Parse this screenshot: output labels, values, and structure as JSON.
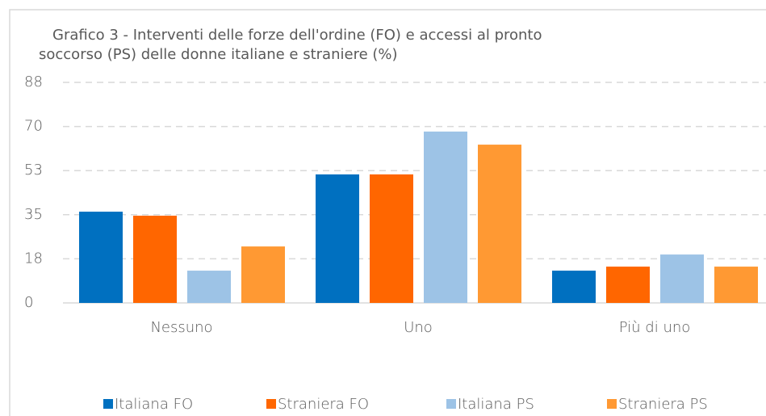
{
  "chart_data": {
    "type": "bar",
    "title": "Grafico 3 - Interventi delle forze dell'ordine (FO) e accessi al pronto soccorso (PS) delle donne italiane e straniere (%)",
    "categories": [
      "Nessuno",
      "Uno",
      "Più di uno"
    ],
    "series": [
      {
        "name": "Italiana FO",
        "color": "#0070c0",
        "values": [
          36.2,
          51,
          12.8
        ]
      },
      {
        "name": "Straniera FO",
        "color": "#ff6600",
        "values": [
          34.6,
          51,
          14.4
        ]
      },
      {
        "name": "Italiana PS",
        "color": "#9dc3e6",
        "values": [
          12.8,
          68,
          19.2
        ]
      },
      {
        "name": "Straniera PS",
        "color": "#ff9933",
        "values": [
          22.4,
          62.8,
          14.4
        ]
      }
    ],
    "ylim": [
      0,
      87.5
    ],
    "yticks": [
      0,
      {
        "value": 17.5,
        "label": "18"
      },
      35,
      {
        "value": 52.5,
        "label": "53"
      },
      70,
      {
        "value": 87.5,
        "label": "88"
      }
    ],
    "grid": true,
    "legend": "bottom"
  }
}
